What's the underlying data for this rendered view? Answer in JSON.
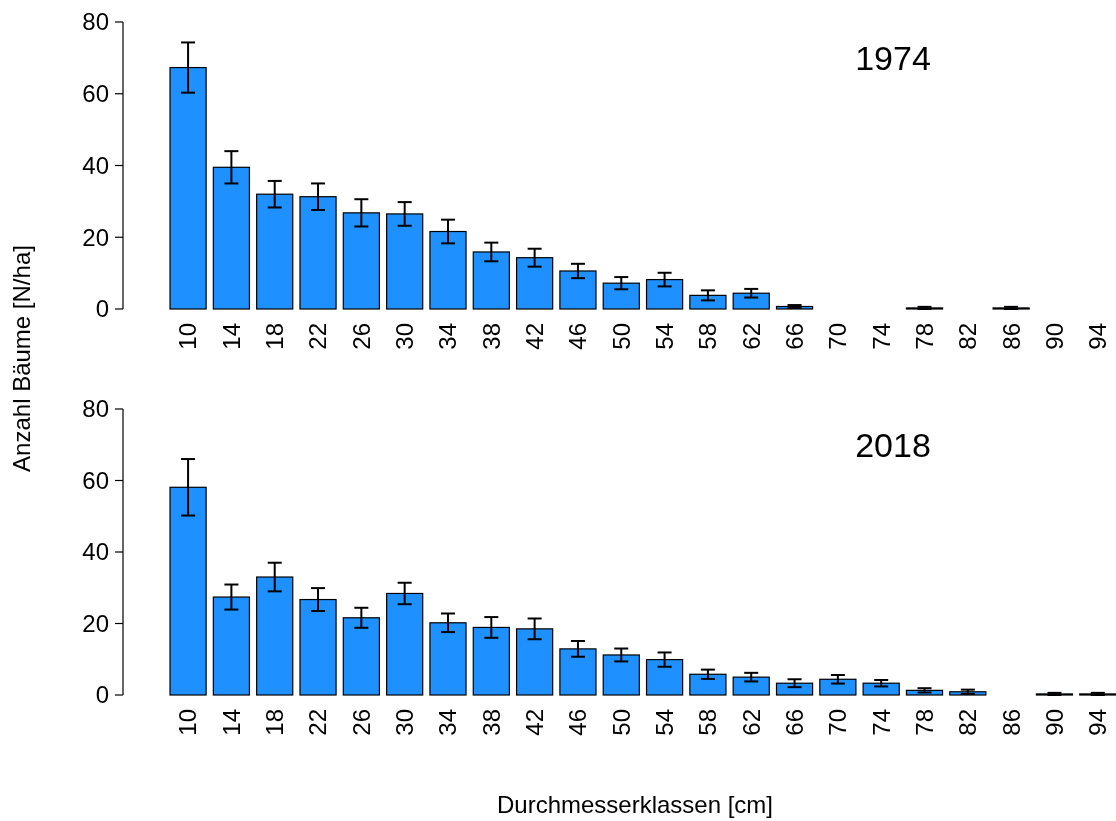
{
  "chart_data": [
    {
      "type": "bar",
      "title": "1974",
      "ylabel": "Anzahl Bäume  [N/ha]",
      "categories": [
        "10",
        "14",
        "18",
        "22",
        "26",
        "30",
        "34",
        "38",
        "42",
        "46",
        "50",
        "54",
        "58",
        "62",
        "66",
        "70",
        "74",
        "78",
        "82",
        "86",
        "90",
        "94"
      ],
      "values": [
        67.3,
        39.5,
        32,
        31.3,
        26.8,
        26.5,
        21.6,
        15.9,
        14.3,
        10.6,
        7.2,
        8.2,
        3.8,
        4.4,
        0.7,
        0,
        0,
        0.3,
        0,
        0.3,
        0,
        0
      ],
      "errors": [
        7,
        4.5,
        3.7,
        3.7,
        3.8,
        3.3,
        3.3,
        2.6,
        2.5,
        2,
        1.7,
        1.9,
        1.4,
        1.2,
        0.4,
        null,
        null,
        0.3,
        null,
        0.3,
        null,
        null
      ],
      "color": "#1e90ff",
      "ylim": [
        0,
        80
      ],
      "yticks": [
        0,
        20,
        40,
        60,
        80
      ],
      "grid": false
    },
    {
      "type": "bar",
      "title": "2018",
      "xlabel": "Durchmesserklassen [cm]",
      "categories": [
        "10",
        "14",
        "18",
        "22",
        "26",
        "30",
        "34",
        "38",
        "42",
        "46",
        "50",
        "54",
        "58",
        "62",
        "66",
        "70",
        "74",
        "78",
        "82",
        "86",
        "90",
        "94"
      ],
      "values": [
        58.1,
        27.4,
        33,
        26.7,
        21.6,
        28.4,
        20.2,
        18.9,
        18.5,
        12.9,
        11.2,
        9.9,
        5.8,
        5,
        3.3,
        4.4,
        3.3,
        1.3,
        0.9,
        0,
        0.3,
        0.3
      ],
      "errors": [
        7.9,
        3.5,
        4,
        3.2,
        2.8,
        3,
        2.6,
        2.9,
        2.9,
        2.2,
        1.8,
        2,
        1.3,
        1.2,
        1.1,
        1.2,
        0.9,
        0.6,
        0.6,
        null,
        0.3,
        0.3
      ],
      "color": "#1e90ff",
      "ylim": [
        0,
        80
      ],
      "yticks": [
        0,
        20,
        40,
        60,
        80
      ],
      "grid": false
    }
  ]
}
